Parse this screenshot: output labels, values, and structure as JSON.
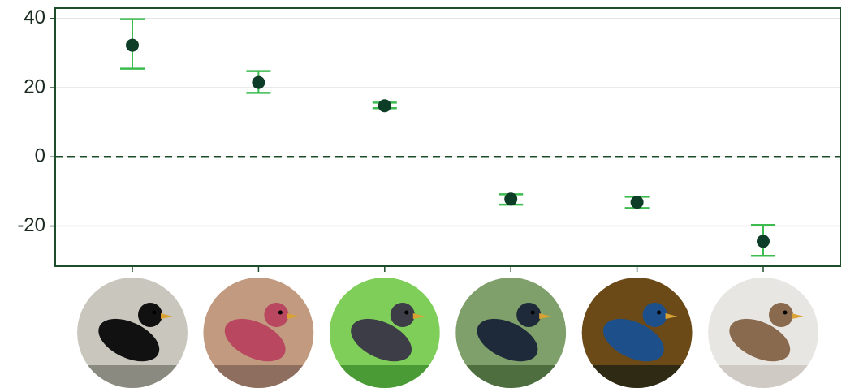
{
  "chart_data": {
    "type": "errorbar",
    "categories": [
      null,
      null,
      null,
      null,
      null,
      null
    ],
    "values": [
      32.3,
      21.5,
      14.8,
      -12.2,
      -13.1,
      -24.4
    ],
    "lower": [
      25.5,
      18.5,
      14.1,
      -13.8,
      -14.8,
      -28.6
    ],
    "upper": [
      39.8,
      24.8,
      15.7,
      -10.8,
      -11.5,
      -19.7
    ],
    "color": "#0d3d26",
    "error_color": "#3dbb4f",
    "ylim": [
      -31.6,
      43
    ],
    "yticks": [
      -20,
      0,
      20,
      40
    ],
    "grid": true,
    "hline": 0
  }
}
